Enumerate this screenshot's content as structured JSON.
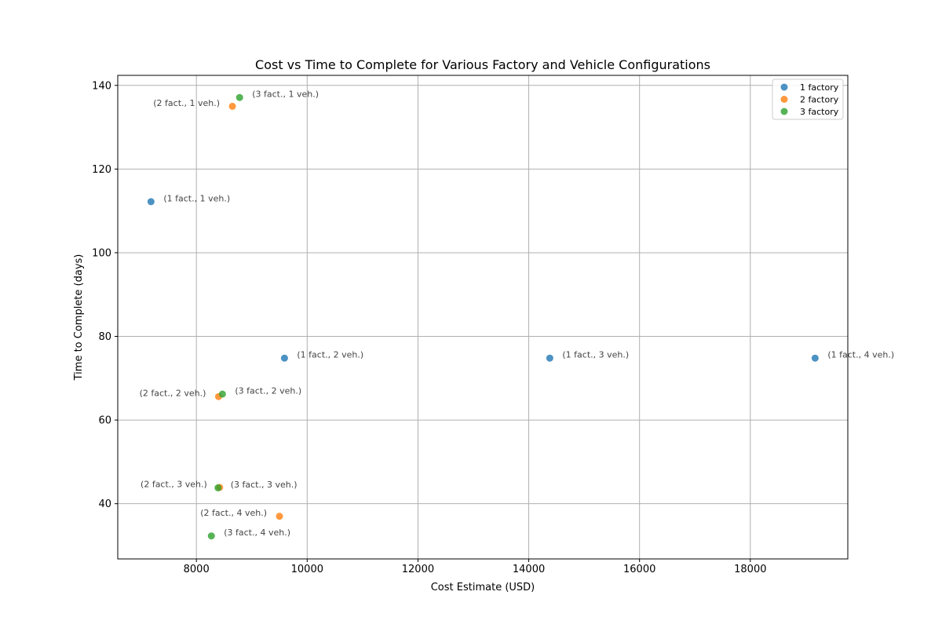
{
  "chart_data": {
    "type": "scatter",
    "title": "Cost vs Time to Complete for Various Factory and Vehicle Configurations",
    "xlabel": "Cost Estimate (USD)",
    "ylabel": "Time to Complete (days)",
    "xlim": [
      6580,
      19760
    ],
    "ylim": [
      26.8,
      142.4
    ],
    "xticks": [
      8000,
      10000,
      12000,
      14000,
      16000,
      18000
    ],
    "yticks": [
      40,
      60,
      80,
      100,
      120,
      140
    ],
    "grid": true,
    "legend": "top-right",
    "series": [
      {
        "name": "1 factory",
        "color": "#1f77b4",
        "points": [
          {
            "x": 7180,
            "y": 112.2,
            "label": "(1 fact., 1 veh.)",
            "label_side": "right"
          },
          {
            "x": 9590,
            "y": 74.8,
            "label": "(1 fact., 2 veh.)",
            "label_side": "right"
          },
          {
            "x": 14380,
            "y": 74.8,
            "label": "(1 fact., 3 veh.)",
            "label_side": "right"
          },
          {
            "x": 19170,
            "y": 74.8,
            "label": "(1 fact., 4 veh.)",
            "label_side": "right"
          }
        ]
      },
      {
        "name": "2 factory",
        "color": "#ff7f0e",
        "points": [
          {
            "x": 8650,
            "y": 135.0,
            "label": "(2 fact., 1 veh.)",
            "label_side": "left"
          },
          {
            "x": 8400,
            "y": 65.6,
            "label": "(2 fact., 2 veh.)",
            "label_side": "left"
          },
          {
            "x": 8420,
            "y": 43.9,
            "label": "(2 fact., 3 veh.)",
            "label_side": "left"
          },
          {
            "x": 9500,
            "y": 37.0,
            "label": "(2 fact., 4 veh.)",
            "label_side": "left"
          }
        ]
      },
      {
        "name": "3 factory",
        "color": "#2ca02c",
        "points": [
          {
            "x": 8780,
            "y": 137.1,
            "label": "(3 fact., 1 veh.)",
            "label_side": "right"
          },
          {
            "x": 8470,
            "y": 66.2,
            "label": "(3 fact., 2 veh.)",
            "label_side": "right"
          },
          {
            "x": 8390,
            "y": 43.8,
            "label": "(3 fact., 3 veh.)",
            "label_side": "right"
          },
          {
            "x": 8270,
            "y": 32.3,
            "label": "(3 fact., 4 veh.)",
            "label_side": "right"
          }
        ]
      }
    ]
  }
}
